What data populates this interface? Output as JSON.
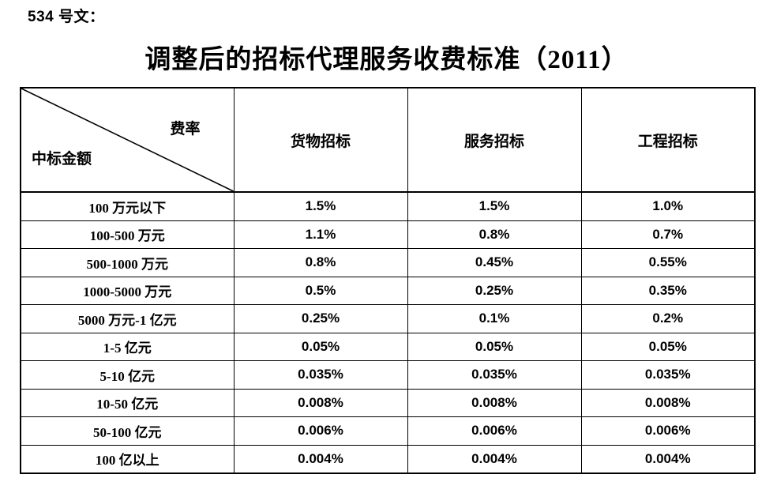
{
  "page": {
    "doc_ref": "534 号文：",
    "title": "调整后的招标代理服务收费标准（2011）"
  },
  "table": {
    "corner": {
      "top_right": "费率",
      "bottom_left": "中标金额"
    },
    "columns": [
      "货物招标",
      "服务招标",
      "工程招标"
    ],
    "rows": [
      {
        "label": "100 万元以下",
        "values": [
          "1.5%",
          "1.5%",
          "1.0%"
        ]
      },
      {
        "label": "100-500 万元",
        "values": [
          "1.1%",
          "0.8%",
          "0.7%"
        ]
      },
      {
        "label": "500-1000 万元",
        "values": [
          "0.8%",
          "0.45%",
          "0.55%"
        ]
      },
      {
        "label": "1000-5000 万元",
        "values": [
          "0.5%",
          "0.25%",
          "0.35%"
        ]
      },
      {
        "label": "5000 万元-1 亿元",
        "values": [
          "0.25%",
          "0.1%",
          "0.2%"
        ]
      },
      {
        "label": "1-5 亿元",
        "values": [
          "0.05%",
          "0.05%",
          "0.05%"
        ]
      },
      {
        "label": "5-10 亿元",
        "values": [
          "0.035%",
          "0.035%",
          "0.035%"
        ]
      },
      {
        "label": "10-50 亿元",
        "values": [
          "0.008%",
          "0.008%",
          "0.008%"
        ]
      },
      {
        "label": "50-100 亿元",
        "values": [
          "0.006%",
          "0.006%",
          "0.006%"
        ]
      },
      {
        "label": "100 亿以上",
        "values": [
          "0.004%",
          "0.004%",
          "0.004%"
        ]
      }
    ]
  },
  "colors": {
    "text": "#000000",
    "background": "#ffffff",
    "border": "#000000"
  }
}
